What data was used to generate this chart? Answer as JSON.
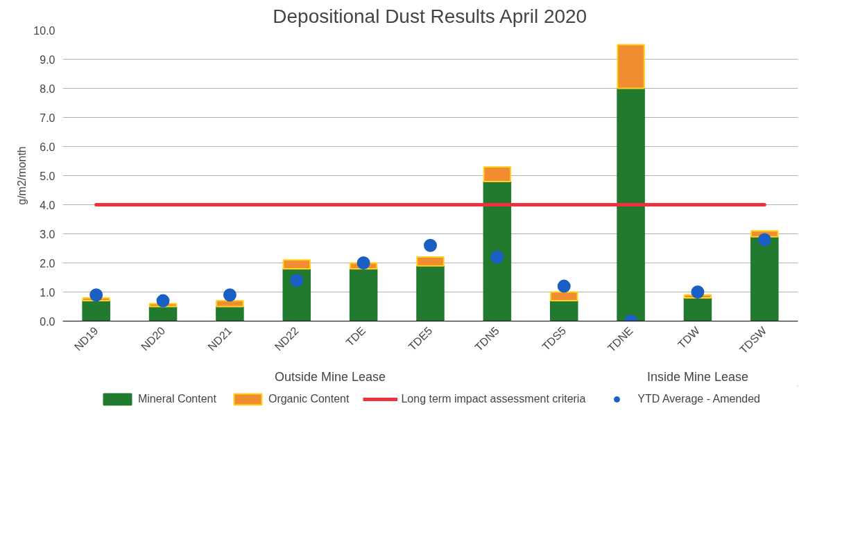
{
  "chart_data": {
    "type": "bar",
    "title": "Depositional Dust Results April 2020",
    "ylabel": "g/m2/month",
    "categories": [
      "ND19",
      "ND20",
      "ND21",
      "ND22",
      "TDE",
      "TDE5",
      "TDN5",
      "TDS5",
      "TDNE",
      "TDW",
      "TDSW"
    ],
    "stacked": true,
    "series": [
      {
        "name": "Mineral Content",
        "color": "#217a2e",
        "values": [
          0.7,
          0.5,
          0.5,
          1.8,
          1.8,
          1.9,
          4.8,
          0.7,
          8.0,
          0.8,
          2.9
        ]
      },
      {
        "name": "Organic Content",
        "color": "#f28c30",
        "values": [
          0.1,
          0.1,
          0.2,
          0.3,
          0.2,
          0.3,
          0.5,
          0.3,
          1.5,
          0.1,
          0.2
        ]
      },
      {
        "name": "Long term impact assessment criteria",
        "type": "line",
        "color": "#f0303a",
        "values": [
          4.0,
          4.0,
          4.0,
          4.0,
          4.0,
          4.0,
          4.0,
          4.0,
          4.0,
          4.0,
          4.0
        ]
      },
      {
        "name": "YTD Average - Amended",
        "type": "scatter",
        "marker": "circle",
        "color": "#1a5fc4",
        "values": [
          0.9,
          0.7,
          0.9,
          1.4,
          2.0,
          2.6,
          2.2,
          1.2,
          0.0,
          1.0,
          2.8
        ]
      }
    ],
    "ylim": [
      0,
      10
    ],
    "yticks": [
      {
        "value": 0,
        "label": "0.0"
      },
      {
        "value": 1,
        "label": "1.0"
      },
      {
        "value": 2,
        "label": "2.0"
      },
      {
        "value": 3,
        "label": "3.0"
      },
      {
        "value": 4,
        "label": "4.0"
      },
      {
        "value": 5,
        "label": "5.0"
      },
      {
        "value": 6,
        "label": "6.0"
      },
      {
        "value": 7,
        "label": "7.0"
      },
      {
        "value": 8,
        "label": "8.0"
      },
      {
        "value": 9,
        "label": "9.0"
      },
      {
        "value": 10,
        "label": "10.0"
      }
    ],
    "annotations": [
      "Outside Mine Lease",
      "Inside Mine Lease"
    ],
    "grid": "y",
    "legend": "bottom"
  }
}
